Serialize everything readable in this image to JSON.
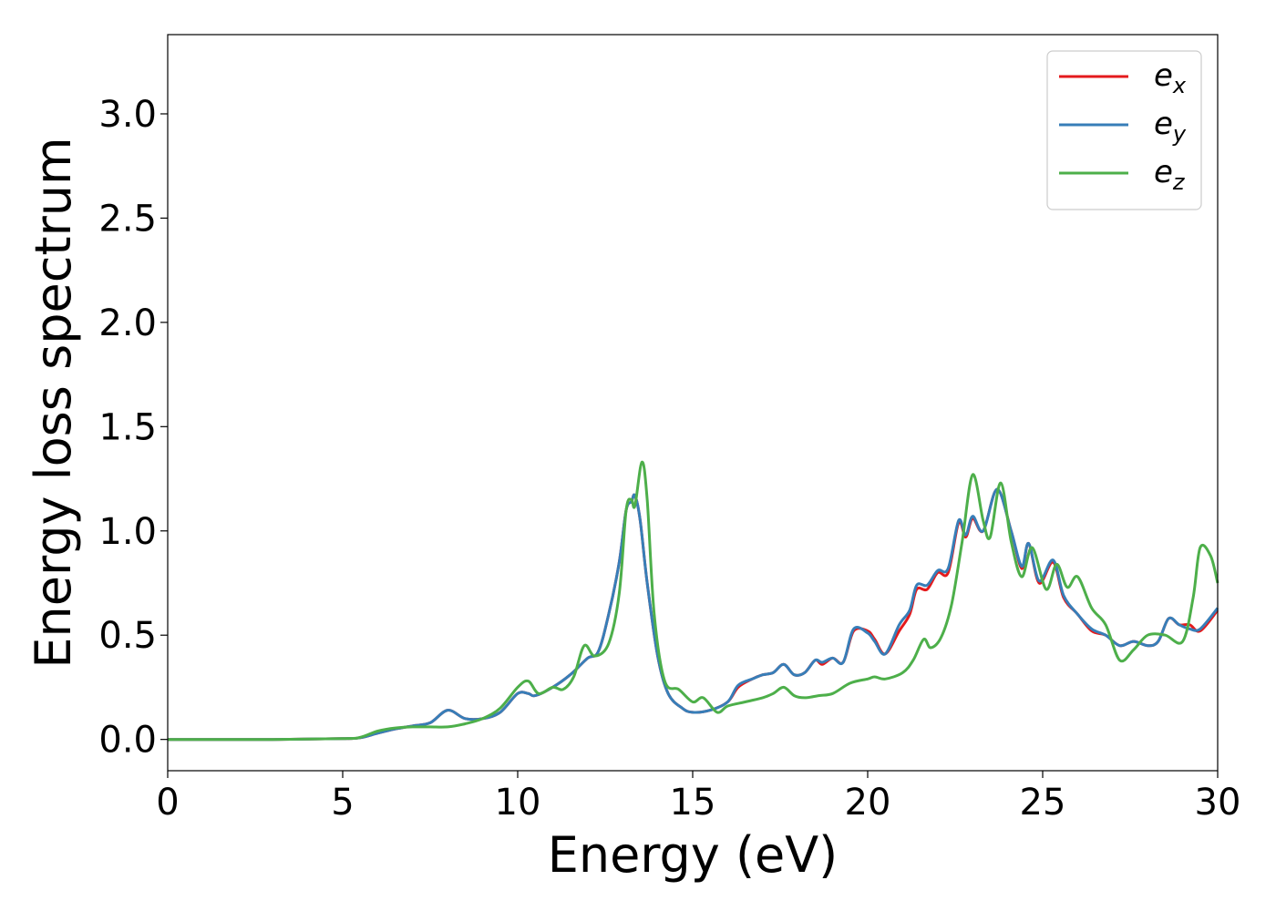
{
  "chart_data": {
    "type": "line",
    "title": "",
    "xlabel": "Energy (eV)",
    "ylabel": "Energy loss spectrum",
    "xlim": [
      0,
      30
    ],
    "ylim": [
      -0.15,
      3.38
    ],
    "xticks": [
      0,
      5,
      10,
      15,
      20,
      25,
      30
    ],
    "xtick_labels": [
      "0",
      "5",
      "10",
      "15",
      "20",
      "25",
      "30"
    ],
    "yticks": [
      0.0,
      0.5,
      1.0,
      1.5,
      2.0,
      2.5,
      3.0
    ],
    "ytick_labels": [
      "0.0",
      "0.5",
      "1.0",
      "1.5",
      "2.0",
      "2.5",
      "3.0"
    ],
    "grid": false,
    "legend_position": "top-right",
    "series": [
      {
        "name": "e_x",
        "label_main": "e",
        "label_sub": "x",
        "color": "#e41a1c",
        "points": [
          [
            0,
            0
          ],
          [
            3,
            0.0
          ],
          [
            5,
            0.004
          ],
          [
            5.5,
            0.008
          ],
          [
            6,
            0.03
          ],
          [
            6.5,
            0.05
          ],
          [
            7,
            0.065
          ],
          [
            7.5,
            0.08
          ],
          [
            8,
            0.14
          ],
          [
            8.5,
            0.1
          ],
          [
            9,
            0.1
          ],
          [
            9.5,
            0.13
          ],
          [
            10,
            0.22
          ],
          [
            10.3,
            0.22
          ],
          [
            10.5,
            0.21
          ],
          [
            11,
            0.25
          ],
          [
            11.5,
            0.31
          ],
          [
            12,
            0.39
          ],
          [
            12.3,
            0.42
          ],
          [
            12.6,
            0.6
          ],
          [
            12.9,
            0.85
          ],
          [
            13.1,
            1.1
          ],
          [
            13.25,
            1.14
          ],
          [
            13.35,
            1.17
          ],
          [
            13.5,
            1.05
          ],
          [
            13.7,
            0.75
          ],
          [
            14,
            0.4
          ],
          [
            14.3,
            0.22
          ],
          [
            14.7,
            0.15
          ],
          [
            15,
            0.13
          ],
          [
            15.5,
            0.14
          ],
          [
            16,
            0.18
          ],
          [
            16.3,
            0.25
          ],
          [
            16.7,
            0.29
          ],
          [
            17,
            0.31
          ],
          [
            17.3,
            0.32
          ],
          [
            17.6,
            0.36
          ],
          [
            17.9,
            0.31
          ],
          [
            18.2,
            0.32
          ],
          [
            18.5,
            0.38
          ],
          [
            18.7,
            0.36
          ],
          [
            19,
            0.39
          ],
          [
            19.3,
            0.37
          ],
          [
            19.6,
            0.52
          ],
          [
            20,
            0.52
          ],
          [
            20.2,
            0.48
          ],
          [
            20.5,
            0.41
          ],
          [
            20.9,
            0.52
          ],
          [
            21.2,
            0.6
          ],
          [
            21.4,
            0.72
          ],
          [
            21.7,
            0.72
          ],
          [
            22,
            0.8
          ],
          [
            22.3,
            0.8
          ],
          [
            22.6,
            1.04
          ],
          [
            22.8,
            0.97
          ],
          [
            23,
            1.06
          ],
          [
            23.3,
            1.0
          ],
          [
            23.7,
            1.2
          ],
          [
            24.1,
            1.0
          ],
          [
            24.4,
            0.82
          ],
          [
            24.6,
            0.94
          ],
          [
            24.9,
            0.75
          ],
          [
            25.3,
            0.85
          ],
          [
            25.6,
            0.68
          ],
          [
            26,
            0.6
          ],
          [
            26.4,
            0.52
          ],
          [
            26.8,
            0.5
          ],
          [
            27.2,
            0.45
          ],
          [
            27.6,
            0.47
          ],
          [
            28,
            0.45
          ],
          [
            28.3,
            0.47
          ],
          [
            28.6,
            0.58
          ],
          [
            28.9,
            0.55
          ],
          [
            29.2,
            0.55
          ],
          [
            29.5,
            0.52
          ],
          [
            30,
            0.62
          ]
        ]
      },
      {
        "name": "e_y",
        "label_main": "e",
        "label_sub": "y",
        "color": "#377eb8",
        "points": [
          [
            0,
            0
          ],
          [
            3,
            0.0
          ],
          [
            5,
            0.004
          ],
          [
            5.5,
            0.008
          ],
          [
            6,
            0.03
          ],
          [
            6.5,
            0.05
          ],
          [
            7,
            0.065
          ],
          [
            7.5,
            0.08
          ],
          [
            8,
            0.14
          ],
          [
            8.5,
            0.1
          ],
          [
            9,
            0.1
          ],
          [
            9.5,
            0.13
          ],
          [
            10,
            0.22
          ],
          [
            10.3,
            0.22
          ],
          [
            10.5,
            0.21
          ],
          [
            11,
            0.25
          ],
          [
            11.5,
            0.31
          ],
          [
            12,
            0.39
          ],
          [
            12.3,
            0.42
          ],
          [
            12.6,
            0.6
          ],
          [
            12.9,
            0.85
          ],
          [
            13.1,
            1.1
          ],
          [
            13.25,
            1.14
          ],
          [
            13.35,
            1.17
          ],
          [
            13.5,
            1.05
          ],
          [
            13.7,
            0.75
          ],
          [
            14,
            0.4
          ],
          [
            14.3,
            0.22
          ],
          [
            14.7,
            0.15
          ],
          [
            15,
            0.13
          ],
          [
            15.5,
            0.14
          ],
          [
            16,
            0.18
          ],
          [
            16.3,
            0.26
          ],
          [
            16.7,
            0.29
          ],
          [
            17,
            0.31
          ],
          [
            17.3,
            0.32
          ],
          [
            17.6,
            0.36
          ],
          [
            17.9,
            0.31
          ],
          [
            18.2,
            0.32
          ],
          [
            18.5,
            0.38
          ],
          [
            18.7,
            0.37
          ],
          [
            19,
            0.39
          ],
          [
            19.3,
            0.37
          ],
          [
            19.6,
            0.53
          ],
          [
            20,
            0.51
          ],
          [
            20.2,
            0.47
          ],
          [
            20.5,
            0.41
          ],
          [
            20.9,
            0.55
          ],
          [
            21.2,
            0.62
          ],
          [
            21.4,
            0.74
          ],
          [
            21.7,
            0.74
          ],
          [
            22,
            0.81
          ],
          [
            22.3,
            0.82
          ],
          [
            22.6,
            1.05
          ],
          [
            22.8,
            0.98
          ],
          [
            23,
            1.07
          ],
          [
            23.3,
            1.0
          ],
          [
            23.7,
            1.2
          ],
          [
            24.1,
            1.0
          ],
          [
            24.4,
            0.83
          ],
          [
            24.6,
            0.94
          ],
          [
            24.9,
            0.76
          ],
          [
            25.3,
            0.86
          ],
          [
            25.6,
            0.69
          ],
          [
            26,
            0.6
          ],
          [
            26.4,
            0.53
          ],
          [
            26.8,
            0.5
          ],
          [
            27.2,
            0.45
          ],
          [
            27.6,
            0.47
          ],
          [
            28,
            0.45
          ],
          [
            28.3,
            0.47
          ],
          [
            28.6,
            0.58
          ],
          [
            28.9,
            0.55
          ],
          [
            29.2,
            0.53
          ],
          [
            29.5,
            0.53
          ],
          [
            30,
            0.63
          ]
        ]
      },
      {
        "name": "e_z",
        "label_main": "e",
        "label_sub": "z",
        "color": "#4daf4a",
        "points": [
          [
            0,
            0
          ],
          [
            3,
            0.0
          ],
          [
            5,
            0.004
          ],
          [
            5.5,
            0.01
          ],
          [
            6,
            0.04
          ],
          [
            6.5,
            0.055
          ],
          [
            7,
            0.06
          ],
          [
            7.5,
            0.06
          ],
          [
            8,
            0.06
          ],
          [
            8.5,
            0.075
          ],
          [
            9,
            0.1
          ],
          [
            9.5,
            0.15
          ],
          [
            10,
            0.25
          ],
          [
            10.3,
            0.28
          ],
          [
            10.6,
            0.22
          ],
          [
            11,
            0.25
          ],
          [
            11.3,
            0.24
          ],
          [
            11.6,
            0.3
          ],
          [
            11.9,
            0.45
          ],
          [
            12.2,
            0.4
          ],
          [
            12.6,
            0.46
          ],
          [
            12.9,
            0.7
          ],
          [
            13.1,
            1.1
          ],
          [
            13.25,
            1.15
          ],
          [
            13.35,
            1.12
          ],
          [
            13.55,
            1.33
          ],
          [
            13.7,
            1.15
          ],
          [
            13.9,
            0.6
          ],
          [
            14.2,
            0.28
          ],
          [
            14.6,
            0.24
          ],
          [
            15,
            0.18
          ],
          [
            15.3,
            0.2
          ],
          [
            15.7,
            0.13
          ],
          [
            16,
            0.16
          ],
          [
            16.5,
            0.18
          ],
          [
            17,
            0.2
          ],
          [
            17.3,
            0.22
          ],
          [
            17.6,
            0.25
          ],
          [
            17.9,
            0.21
          ],
          [
            18.2,
            0.2
          ],
          [
            18.6,
            0.21
          ],
          [
            19,
            0.22
          ],
          [
            19.5,
            0.27
          ],
          [
            20,
            0.29
          ],
          [
            20.2,
            0.3
          ],
          [
            20.5,
            0.29
          ],
          [
            21,
            0.32
          ],
          [
            21.3,
            0.38
          ],
          [
            21.6,
            0.48
          ],
          [
            21.8,
            0.44
          ],
          [
            22.1,
            0.49
          ],
          [
            22.4,
            0.65
          ],
          [
            22.7,
            0.95
          ],
          [
            23,
            1.27
          ],
          [
            23.3,
            1.05
          ],
          [
            23.5,
            0.97
          ],
          [
            23.8,
            1.23
          ],
          [
            24.1,
            0.95
          ],
          [
            24.4,
            0.78
          ],
          [
            24.7,
            0.92
          ],
          [
            25.1,
            0.72
          ],
          [
            25.4,
            0.84
          ],
          [
            25.7,
            0.73
          ],
          [
            26,
            0.78
          ],
          [
            26.4,
            0.63
          ],
          [
            26.8,
            0.55
          ],
          [
            27.2,
            0.38
          ],
          [
            27.6,
            0.43
          ],
          [
            28,
            0.5
          ],
          [
            28.5,
            0.5
          ],
          [
            29,
            0.47
          ],
          [
            29.3,
            0.68
          ],
          [
            29.5,
            0.92
          ],
          [
            29.8,
            0.88
          ],
          [
            30,
            0.75
          ]
        ]
      }
    ]
  }
}
